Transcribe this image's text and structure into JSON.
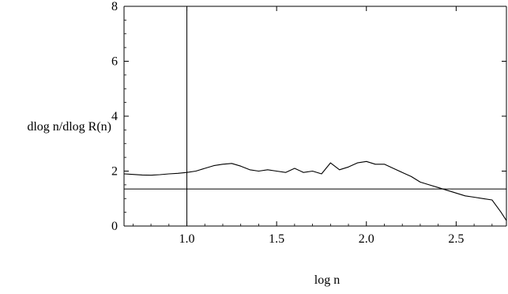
{
  "chart_data": {
    "type": "line",
    "xlabel": "log n",
    "ylabel": "dlog n/dlog R(n)",
    "xlim": [
      0.65,
      2.78
    ],
    "ylim": [
      0,
      8
    ],
    "x_ticks": [
      1.0,
      1.5,
      2.0,
      2.5
    ],
    "x_tick_labels": [
      "1.0",
      "1.5",
      "2.0",
      "2.5"
    ],
    "y_ticks": [
      0,
      2,
      4,
      6,
      8
    ],
    "y_tick_labels": [
      "0",
      "2",
      "4",
      "6",
      "8"
    ],
    "grid": false,
    "reference_lines": {
      "vertical_x": 1.0,
      "horizontal_y": 1.35
    },
    "series": [
      {
        "x": [
          0.65,
          0.7,
          0.75,
          0.8,
          0.85,
          0.9,
          0.95,
          1.0,
          1.05,
          1.1,
          1.15,
          1.2,
          1.25,
          1.3,
          1.35,
          1.4,
          1.45,
          1.5,
          1.55,
          1.6,
          1.65,
          1.7,
          1.75,
          1.8,
          1.85,
          1.9,
          1.95,
          2.0,
          2.05,
          2.1,
          2.15,
          2.2,
          2.25,
          2.3,
          2.35,
          2.4,
          2.45,
          2.5,
          2.55,
          2.6,
          2.65,
          2.7,
          2.75,
          2.78
        ],
        "y": [
          1.9,
          1.88,
          1.86,
          1.85,
          1.87,
          1.9,
          1.92,
          1.95,
          2.0,
          2.1,
          2.2,
          2.25,
          2.28,
          2.18,
          2.05,
          2.0,
          2.05,
          2.0,
          1.95,
          2.1,
          1.95,
          2.0,
          1.9,
          2.3,
          2.05,
          2.15,
          2.3,
          2.35,
          2.25,
          2.25,
          2.1,
          1.95,
          1.8,
          1.6,
          1.5,
          1.4,
          1.3,
          1.2,
          1.1,
          1.05,
          1.0,
          0.95,
          0.5,
          0.2
        ]
      }
    ]
  }
}
